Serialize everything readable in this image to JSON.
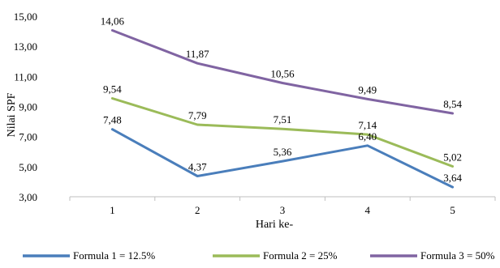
{
  "chart_data": {
    "type": "line",
    "title": "",
    "xlabel": "Hari ke-",
    "ylabel": "Nilai SPF",
    "x": [
      "1",
      "2",
      "3",
      "4",
      "5"
    ],
    "ylim": [
      3.0,
      15.0
    ],
    "yticks": [
      "3,00",
      "5,00",
      "7,00",
      "9,00",
      "11,00",
      "13,00",
      "15,00"
    ],
    "grid": false,
    "legend": "bottom",
    "series": [
      {
        "name": "Formula 1 = 12.5%",
        "color": "#4a7ebb",
        "values": [
          7.48,
          4.37,
          5.36,
          6.4,
          3.64
        ],
        "labels": [
          "7,48",
          "4,37",
          "5,36",
          "6,40",
          "3,64"
        ]
      },
      {
        "name": "Formula 2 = 25%",
        "color": "#9bbb59",
        "values": [
          9.54,
          7.79,
          7.51,
          7.14,
          5.02
        ],
        "labels": [
          "9,54",
          "7,79",
          "7,51",
          "7,14",
          "5,02"
        ]
      },
      {
        "name": "Formula 3 = 50%",
        "color": "#8064a2",
        "values": [
          14.06,
          11.87,
          10.56,
          9.49,
          8.54
        ],
        "labels": [
          "14,06",
          "11,87",
          "10,56",
          "9,49",
          "8,54"
        ]
      }
    ]
  }
}
